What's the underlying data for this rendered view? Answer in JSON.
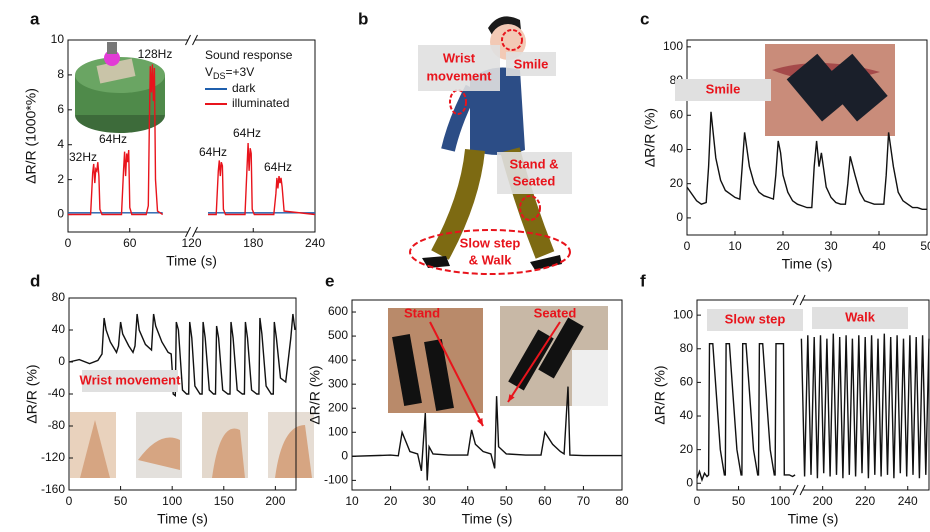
{
  "panels": [
    "a",
    "b",
    "c",
    "d",
    "e",
    "f"
  ],
  "chart_data": [
    {
      "type": "line",
      "x_label": "Time (s)",
      "y_label": "ΔR/R (1000*%)",
      "xlim": [
        0,
        240
      ],
      "xticks": [
        0,
        60,
        120,
        180,
        240
      ],
      "ylim": [
        -1,
        10
      ],
      "yticks": [
        0,
        2,
        4,
        6,
        8,
        10
      ],
      "xbreak": 120,
      "legend_title": "Sound response",
      "legend_subtitle": {
        "main": "V",
        "sub": "DS",
        "rest": "=+3V"
      },
      "annotations": [
        "32Hz",
        "64Hz",
        "128Hz",
        "64Hz",
        "64Hz",
        "64Hz"
      ],
      "series": [
        {
          "name": "dark",
          "color": "#1f5fad",
          "x": [
            0,
            92,
            110,
            136,
            240
          ],
          "values": [
            0.1,
            0.1,
            null,
            0.1,
            0.1
          ]
        },
        {
          "name": "illuminated",
          "color": "#e8141c",
          "x": [
            0,
            22,
            24,
            25,
            26,
            27,
            28,
            29,
            30,
            31,
            33,
            52,
            54,
            55,
            56,
            57,
            58,
            59,
            60,
            62,
            76,
            78,
            79,
            80,
            81,
            82,
            83,
            84,
            85,
            87,
            92,
            110,
            136,
            144,
            146,
            147,
            148,
            149,
            150,
            151,
            153,
            172,
            174,
            175,
            176,
            177,
            178,
            179,
            181,
            200,
            202,
            203,
            204,
            205,
            206,
            207,
            208,
            210,
            240
          ],
          "values": [
            0,
            0,
            2.4,
            2.9,
            1.8,
            2.6,
            2.5,
            3,
            2.2,
            0.3,
            0,
            0,
            2.6,
            3.6,
            2.2,
            3.5,
            3,
            3.7,
            0.4,
            0,
            0,
            0.5,
            5,
            8.5,
            7,
            8.6,
            6.5,
            8.4,
            2,
            0.2,
            0,
            null,
            0,
            0,
            2.5,
            3.1,
            2.2,
            3,
            2.8,
            0.3,
            0,
            0,
            2.8,
            4.1,
            2.5,
            3.8,
            3.5,
            0.3,
            0,
            0,
            1.2,
            2.1,
            1.5,
            2.2,
            1.8,
            2.1,
            1.6,
            0.2,
            0
          ]
        }
      ]
    },
    {
      "type": "line",
      "x_label": "Time (s)",
      "y_label": "ΔR/R (%)",
      "xlim": [
        0,
        50
      ],
      "xticks": [
        0,
        10,
        20,
        30,
        40,
        50
      ],
      "ylim": [
        -10,
        104
      ],
      "yticks": [
        0,
        20,
        40,
        60,
        80,
        100
      ],
      "annotations": [
        "Smile"
      ],
      "series": [
        {
          "color": "#111111",
          "x": [
            0,
            2,
            3,
            4,
            4.5,
            5,
            6,
            7,
            8,
            9,
            10,
            11,
            11.5,
            12,
            13,
            14,
            15,
            16,
            17,
            18,
            18.5,
            19,
            19.5,
            20,
            21,
            22,
            23,
            24,
            25,
            26,
            26.5,
            27,
            27.5,
            28,
            29,
            30,
            31,
            32,
            33,
            33.5,
            34,
            35,
            36,
            37,
            38,
            39,
            40,
            41,
            41.5,
            42,
            43,
            44,
            45,
            46,
            47,
            48,
            49,
            50
          ],
          "values": [
            18,
            10,
            8,
            9,
            30,
            62,
            35,
            22,
            16,
            14,
            12,
            11,
            30,
            50,
            30,
            20,
            15,
            13,
            12,
            11,
            25,
            45,
            38,
            25,
            15,
            10,
            8,
            7,
            6,
            6,
            30,
            45,
            30,
            38,
            18,
            12,
            9,
            8,
            8,
            20,
            36,
            25,
            15,
            10,
            9,
            8,
            8,
            8,
            25,
            50,
            30,
            15,
            10,
            8,
            6,
            6,
            5,
            5
          ]
        }
      ]
    },
    {
      "type": "line",
      "x_label": "Time (s)",
      "y_label": "ΔR/R (%)",
      "xlim": [
        0,
        220
      ],
      "xticks": [
        0,
        50,
        100,
        150,
        200
      ],
      "ylim": [
        -160,
        80
      ],
      "yticks": [
        -160,
        -120,
        -80,
        -40,
        0,
        40,
        80
      ],
      "annotations": [
        "Wrist movement"
      ],
      "series": [
        {
          "color": "#111111",
          "x": [
            0,
            10,
            20,
            28,
            32,
            34,
            36,
            40,
            46,
            48,
            50,
            52,
            58,
            62,
            64,
            66,
            68,
            74,
            80,
            82,
            84,
            90,
            96,
            99,
            100,
            101,
            103,
            104,
            106,
            110,
            114,
            116,
            117,
            119,
            122,
            127,
            129,
            130,
            132,
            136,
            140,
            142,
            143,
            145,
            149,
            154,
            156,
            157,
            159,
            163,
            168,
            170,
            171,
            173,
            177,
            182,
            184,
            185,
            187,
            191,
            196,
            198,
            199,
            201,
            205,
            210,
            215,
            217,
            219
          ],
          "values": [
            0,
            3,
            -2,
            2,
            10,
            55,
            40,
            25,
            12,
            20,
            50,
            35,
            20,
            12,
            20,
            60,
            40,
            22,
            15,
            60,
            45,
            25,
            12,
            10,
            -10,
            -40,
            -42,
            50,
            40,
            -35,
            -40,
            -40,
            50,
            30,
            -30,
            -40,
            -40,
            50,
            30,
            -35,
            -40,
            -40,
            45,
            30,
            -35,
            -40,
            -40,
            50,
            30,
            -35,
            -40,
            -40,
            50,
            30,
            -35,
            -40,
            -40,
            55,
            35,
            -30,
            -40,
            -40,
            50,
            30,
            -20,
            -25,
            30,
            60,
            40
          ]
        }
      ]
    },
    {
      "type": "line",
      "x_label": "Time (s)",
      "y_label": "ΔR/R (%)",
      "xlim": [
        10,
        80
      ],
      "xticks": [
        10,
        20,
        30,
        40,
        50,
        60,
        70,
        80
      ],
      "ylim": [
        -140,
        650
      ],
      "yticks": [
        -100,
        0,
        100,
        200,
        300,
        400,
        500,
        600
      ],
      "annotations": [
        "Stand",
        "Seated"
      ],
      "series": [
        {
          "color": "#111111",
          "x": [
            10,
            20,
            22,
            23,
            24,
            25,
            27,
            28,
            29,
            29.5,
            30,
            31,
            35,
            40,
            41,
            42,
            44,
            46,
            47,
            47.5,
            48,
            50,
            55,
            59,
            60,
            62,
            64,
            65,
            66,
            66.5,
            70,
            80
          ],
          "values": [
            0,
            5,
            2,
            100,
            60,
            20,
            10,
            -60,
            180,
            -100,
            40,
            10,
            5,
            5,
            110,
            50,
            20,
            10,
            -50,
            250,
            40,
            10,
            5,
            5,
            100,
            50,
            20,
            10,
            290,
            5,
            3,
            3
          ]
        }
      ]
    },
    {
      "type": "line",
      "x_label": "Time (s)",
      "y_label": "ΔR/R (%)",
      "xlim": [
        0,
        250
      ],
      "xticks": [
        0,
        50,
        100,
        200,
        220,
        240
      ],
      "ylim": [
        -4,
        109
      ],
      "yticks": [
        0,
        20,
        40,
        60,
        80,
        100
      ],
      "xbreak": [
        120,
        190
      ],
      "annotations": [
        "Slow step",
        "Walk"
      ],
      "series": [
        {
          "color": "#111111",
          "x": [
            0,
            3,
            6,
            9,
            12,
            14,
            15,
            19,
            23,
            28,
            33,
            34,
            35,
            39,
            43,
            48,
            53,
            54,
            55,
            59,
            63,
            68,
            73,
            74,
            75,
            79,
            83,
            88,
            93,
            94,
            95,
            100,
            104,
            105,
            110,
            111,
            115,
            118,
            150,
            190,
            191.5,
            193,
            194.5,
            196,
            197.5,
            199,
            200.5,
            202,
            203.5,
            205,
            206.5,
            208,
            209.5,
            211,
            212.5,
            214,
            215.5,
            217,
            218.5,
            220,
            221.5,
            223,
            224.5,
            226,
            227.5,
            229,
            230.5,
            232,
            233.5,
            235,
            236.5,
            238,
            239.5,
            241,
            242.5,
            244,
            245.5,
            247,
            248.5,
            250
          ],
          "values": [
            3,
            7,
            2,
            6,
            4,
            5,
            83,
            83,
            55,
            20,
            5,
            5,
            83,
            83,
            55,
            20,
            5,
            5,
            83,
            83,
            55,
            20,
            5,
            5,
            83,
            83,
            55,
            20,
            5,
            5,
            83,
            83,
            83,
            5,
            5,
            5,
            4,
            5,
            null,
            86,
            4,
            88,
            5,
            87,
            3,
            88,
            6,
            86,
            4,
            89,
            5,
            87,
            3,
            88,
            5,
            86,
            4,
            88,
            6,
            87,
            3,
            88,
            5,
            86,
            4,
            89,
            5,
            87,
            3,
            88,
            6,
            86,
            4,
            88,
            5,
            87,
            3,
            88,
            5,
            86
          ]
        }
      ]
    }
  ],
  "diagram": {
    "labels": [
      {
        "lines": [
          "Wrist",
          "movement"
        ]
      },
      {
        "lines": [
          "Smile"
        ]
      },
      {
        "lines": [
          "Stand &",
          "Seated"
        ]
      },
      {
        "lines": [
          "Slow step",
          "& Walk"
        ]
      }
    ]
  }
}
